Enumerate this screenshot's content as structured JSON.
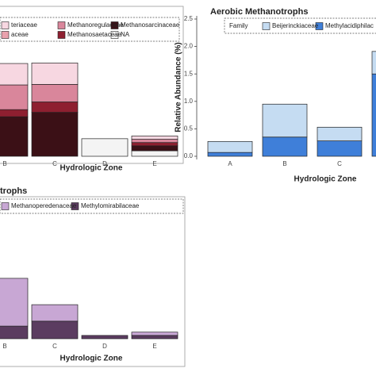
{
  "chart_data": [
    {
      "type": "bar",
      "stacked": true,
      "xlabel": "Hydrologic Zone",
      "categories": [
        "B",
        "C",
        "D",
        "E"
      ],
      "ylim": [
        0,
        2.5
      ],
      "series": [
        {
          "name": "NA",
          "color": "#f4f4f4",
          "values": [
            0,
            0,
            0.32,
            0.1
          ]
        },
        {
          "name": "Methanosarcinaceae",
          "color": "#3b1016",
          "values": [
            0.72,
            0.8,
            0,
            0.09
          ]
        },
        {
          "name": "Methanosaetaceae",
          "color": "#8e1f30",
          "values": [
            0.13,
            0.19,
            0,
            0.06
          ]
        },
        {
          "name": "aceae",
          "color": "#e9a1ad",
          "values": [
            0,
            0,
            0,
            0
          ]
        },
        {
          "name": "Methanoregulaceae",
          "color": "#d9869b",
          "values": [
            0.45,
            0.32,
            0,
            0.06
          ]
        },
        {
          "name": "teriaceae",
          "color": "#f7d7e1",
          "values": [
            0.39,
            0.39,
            0,
            0.06
          ]
        }
      ]
    },
    {
      "type": "bar",
      "stacked": true,
      "title": "Aerobic Methanotrophs",
      "xlabel": "Hydrologic Zone",
      "ylabel": "Relative Abundance (%)",
      "legend_title": "Family",
      "categories": [
        "A",
        "B",
        "C",
        null
      ],
      "ylim": [
        0,
        2.5
      ],
      "yticks": [
        {
          "value": 0,
          "label": "0.0"
        },
        {
          "value": 0.5,
          "label": "0.5"
        },
        {
          "value": 1,
          "label": "1.0"
        },
        {
          "value": 1.5,
          "label": "1.5"
        },
        {
          "value": 2,
          "label": "2.0"
        },
        {
          "value": 2.5,
          "label": "2.5"
        }
      ],
      "series": [
        {
          "name": "Methylacidiphilac",
          "color": "#3f7fd9",
          "values": [
            0.07,
            0.35,
            0.28,
            1.5
          ]
        },
        {
          "name": "Beijerinckiaceae",
          "color": "#c5dcf2",
          "values": [
            0.2,
            0.6,
            0.25,
            0.41
          ]
        }
      ]
    },
    {
      "type": "bar",
      "stacked": true,
      "title": "trophs",
      "xlabel": "Hydrologic Zone",
      "categories": [
        "B",
        "C",
        "D",
        "E"
      ],
      "ylim": [
        0,
        2.5
      ],
      "series": [
        {
          "name": "Methylomirabilaceae",
          "color": "#5b3c60",
          "values": [
            0.23,
            0.32,
            0.06,
            0.06
          ]
        },
        {
          "name": "Methanoperedenaceae",
          "color": "#c8a7d4",
          "values": [
            0.87,
            0.3,
            0,
            0.06
          ]
        }
      ]
    }
  ]
}
